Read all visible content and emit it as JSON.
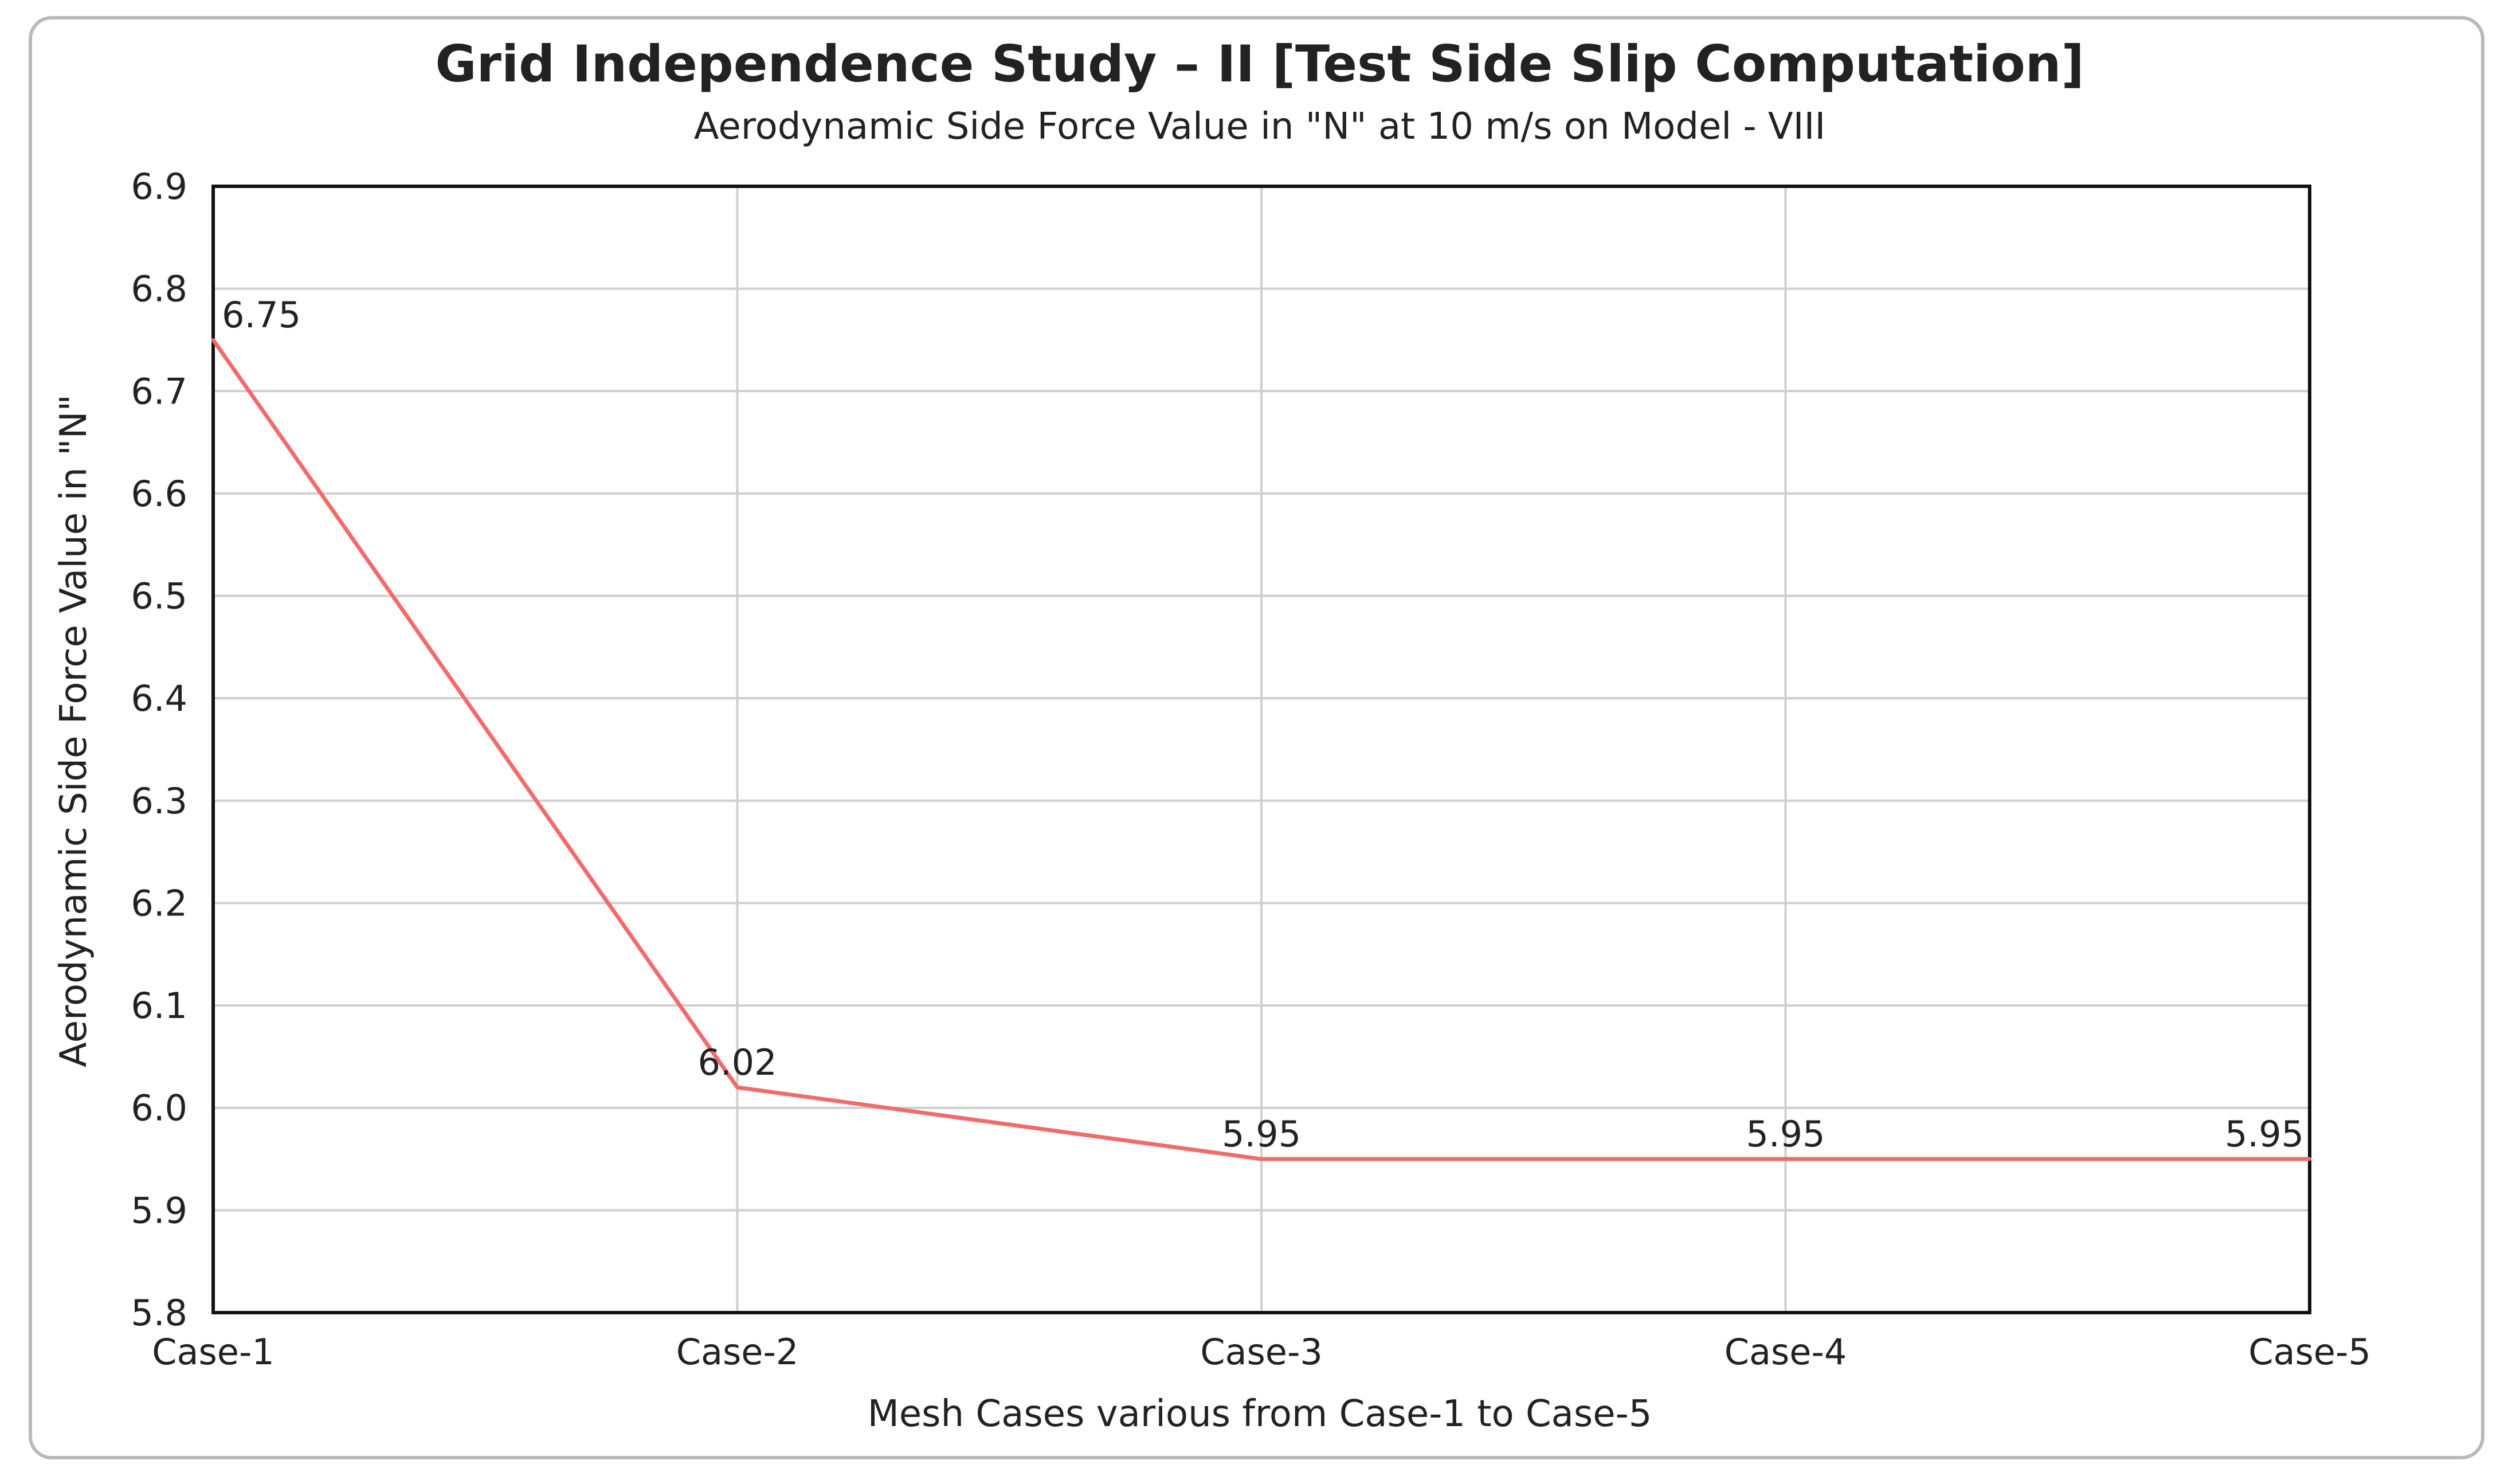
{
  "chart_data": {
    "type": "line",
    "title": "Grid Independence Study – II [Test Side Slip Computation]",
    "subtitle": "Aerodynamic Side Force Value in \"N\" at 10 m/s on Model - VIII",
    "xlabel": "Mesh Cases various from Case-1 to Case-5",
    "ylabel": "Aerodynamic Side Force Value in \"N\"",
    "categories": [
      "Case-1",
      "Case-2",
      "Case-3",
      "Case-4",
      "Case-5"
    ],
    "series": [
      {
        "name": "Aerodynamic Side Force",
        "values": [
          6.75,
          6.02,
          5.95,
          5.95,
          5.95
        ],
        "labels": [
          "6.75",
          "6.02",
          "5.95",
          "5.95",
          "5.95"
        ],
        "color": "#f26b6b"
      }
    ],
    "ylim": [
      5.8,
      6.9
    ],
    "yticks": [
      5.8,
      5.9,
      6.0,
      6.1,
      6.2,
      6.3,
      6.4,
      6.5,
      6.6,
      6.7,
      6.8,
      6.9
    ],
    "ytick_labels": [
      "5.8",
      "5.9",
      "6.0",
      "6.1",
      "6.2",
      "6.3",
      "6.4",
      "6.5",
      "6.6",
      "6.7",
      "6.8",
      "6.9"
    ],
    "grid": true,
    "legend": "none"
  },
  "colors": {
    "line": "#f26b6b",
    "grid": "#cfcfcf",
    "axis": "#111111",
    "frame": "#b9b9b9",
    "text": "#222222"
  }
}
